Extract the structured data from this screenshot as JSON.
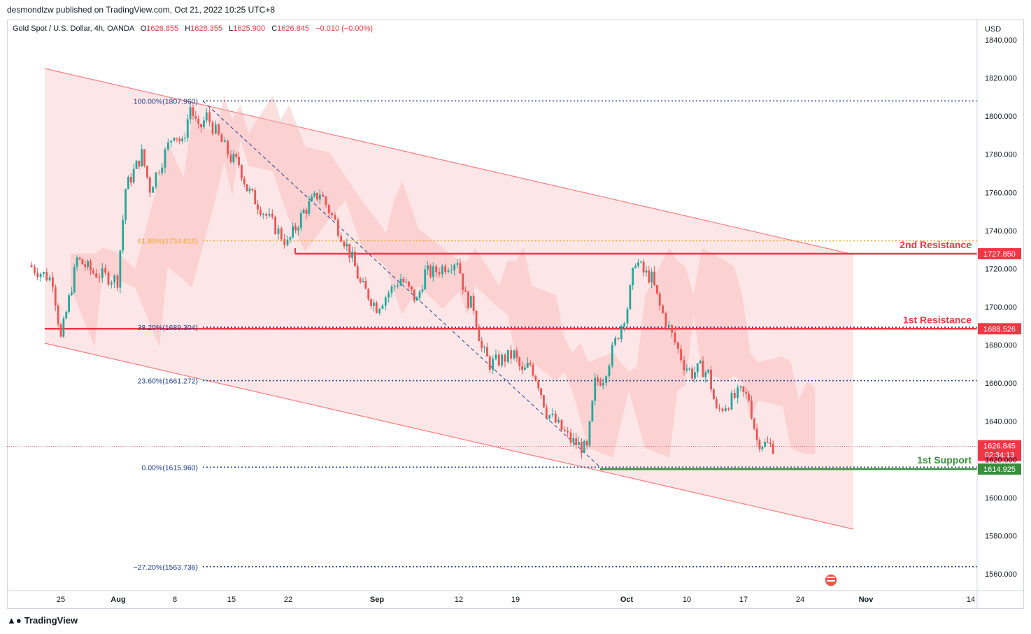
{
  "header": {
    "publisher": "desmondlzw published on TradingView.com, Oct 21, 2022 10:25 UTC+8"
  },
  "legend": {
    "symbol": "Gold Spot / U.S. Dollar, 4h, OANDA",
    "o_label": "O",
    "o": "1626.855",
    "h_label": "H",
    "h": "1628.355",
    "l_label": "L",
    "l": "1625.900",
    "c_label": "C",
    "c": "1626.845",
    "change": "−0.010 (−0.00%)"
  },
  "footer": {
    "brand": "TradingView"
  },
  "colors": {
    "up": "#26a69a",
    "down": "#ef5350",
    "resistance": "#f23645",
    "support": "#388e3c",
    "fib": "#1f3e8a",
    "fib618": "#f5a623",
    "channel": "#f77c80"
  },
  "chart_data": {
    "type": "candlestick",
    "currency": "USD",
    "y_range": [
      1545,
      1848
    ],
    "y_ticks": [
      "1840.000",
      "1820.000",
      "1800.000",
      "1780.000",
      "1760.000",
      "1740.000",
      "1720.000",
      "1700.000",
      "1680.000",
      "1660.000",
      "1640.000",
      "1620.000",
      "1600.000",
      "1580.000",
      "1560.000"
    ],
    "x_ticks": [
      "25",
      "Aug",
      "8",
      "15",
      "22",
      "Sep",
      "12",
      "19",
      "Oct",
      "10",
      "17",
      "24",
      "Nov",
      "14"
    ],
    "fib_levels": [
      {
        "label": "100.00%(1807.960)",
        "value": 1807.96
      },
      {
        "label": "61.80%(1734.616)",
        "value": 1734.616
      },
      {
        "label": "38.20%(1689.304)",
        "value": 1689.304
      },
      {
        "label": "23.60%(1661.272)",
        "value": 1661.272
      },
      {
        "label": "0.00%(1615.960)",
        "value": 1615.96
      },
      {
        "label": "−27.20%(1563.736)",
        "value": 1563.736
      }
    ],
    "levels": [
      {
        "name": "2nd Resistance",
        "value": 1727.85,
        "price_label": "1727.850",
        "kind": "resistance"
      },
      {
        "name": "1st Resistance",
        "value": 1688.526,
        "price_label": "1688.526",
        "kind": "resistance"
      },
      {
        "name": "1st Support",
        "value": 1614.925,
        "price_label": "1614.925",
        "kind": "support"
      }
    ],
    "last_price": {
      "value": 1626.845,
      "label": "1626.845",
      "countdown": "02:34:13"
    },
    "close_path": [
      [
        "Jul 21",
        1722
      ],
      [
        "Jul 24",
        1714
      ],
      [
        "Jul 25",
        1683
      ],
      [
        "Jul 27",
        1725
      ],
      [
        "Jul 29",
        1718
      ],
      [
        "Aug 1",
        1714
      ],
      [
        "Aug 2",
        1762
      ],
      [
        "Aug 4",
        1780
      ],
      [
        "Aug 5",
        1762
      ],
      [
        "Aug 8",
        1792
      ],
      [
        "Aug 9",
        1785
      ],
      [
        "Aug 10",
        1805
      ],
      [
        "Aug 11",
        1792
      ],
      [
        "Aug 12",
        1800
      ],
      [
        "Aug 15",
        1778
      ],
      [
        "Aug 16",
        1775
      ],
      [
        "Aug 17",
        1762
      ],
      [
        "Aug 19",
        1750
      ],
      [
        "Aug 22",
        1733
      ],
      [
        "Aug 24",
        1750
      ],
      [
        "Aug 26",
        1760
      ],
      [
        "Aug 29",
        1735
      ],
      [
        "Aug 30",
        1725
      ],
      [
        "Aug 31",
        1712
      ],
      [
        "Sep 2",
        1700
      ],
      [
        "Sep 5",
        1715
      ],
      [
        "Sep 7",
        1703
      ],
      [
        "Sep 8",
        1718
      ],
      [
        "Sep 9",
        1718
      ],
      [
        "Sep 12",
        1725
      ],
      [
        "Sep 13",
        1705
      ],
      [
        "Sep 14",
        1700
      ],
      [
        "Sep 15",
        1678
      ],
      [
        "Sep 16",
        1670
      ],
      [
        "Sep 19",
        1675
      ],
      [
        "Sep 20",
        1665
      ],
      [
        "Sep 21",
        1670
      ],
      [
        "Sep 22",
        1660
      ],
      [
        "Sep 23",
        1645
      ],
      [
        "Sep 26",
        1630
      ],
      [
        "Sep 28",
        1625
      ],
      [
        "Sep 29",
        1660
      ],
      [
        "Sep 30",
        1663
      ],
      [
        "Oct 3",
        1700
      ],
      [
        "Oct 4",
        1725
      ],
      [
        "Oct 5",
        1718
      ],
      [
        "Oct 6",
        1715
      ],
      [
        "Oct 7",
        1700
      ],
      [
        "Oct 10",
        1670
      ],
      [
        "Oct 11",
        1665
      ],
      [
        "Oct 12",
        1668
      ],
      [
        "Oct 13",
        1665
      ],
      [
        "Oct 14",
        1645
      ],
      [
        "Oct 17",
        1655
      ],
      [
        "Oct 18",
        1652
      ],
      [
        "Oct 19",
        1630
      ],
      [
        "Oct 20",
        1628
      ],
      [
        "Oct 21",
        1626.845
      ]
    ]
  }
}
